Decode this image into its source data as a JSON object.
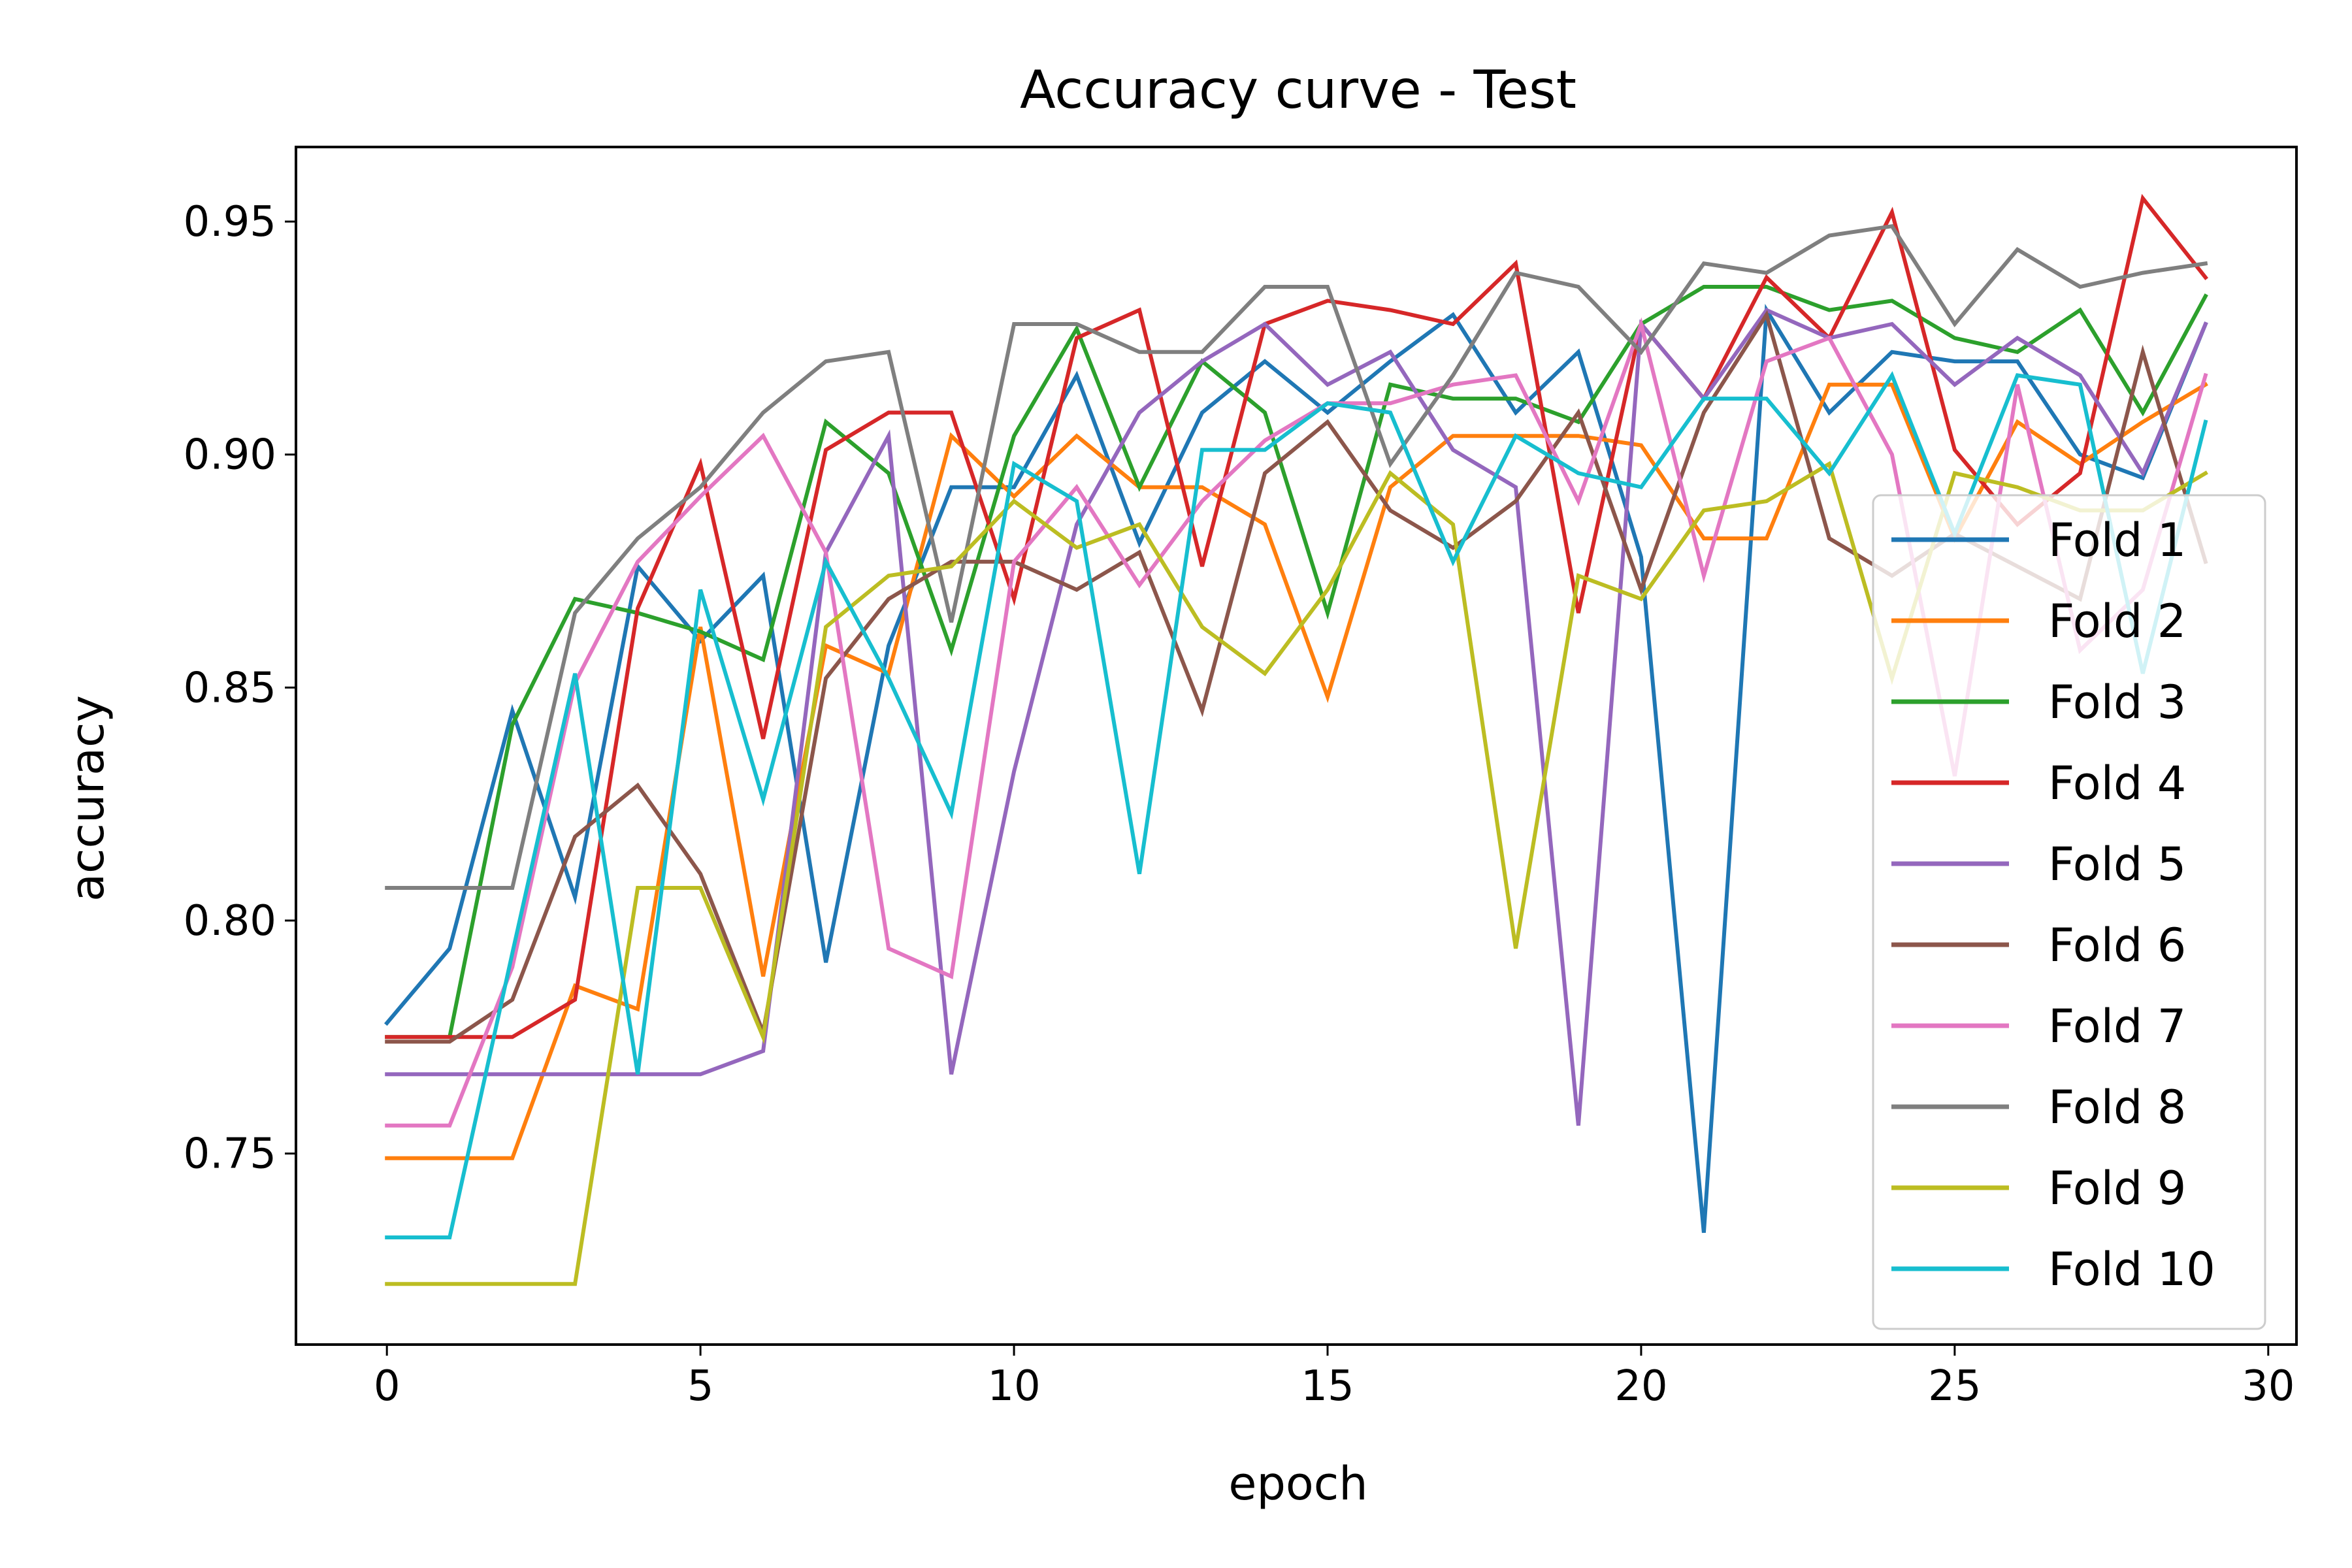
{
  "chart_data": {
    "type": "line",
    "title": "Accuracy curve - Test",
    "xlabel": "epoch",
    "ylabel": "accuracy",
    "xlim": [
      -1.45,
      30.45
    ],
    "ylim": [
      0.709,
      0.966
    ],
    "xticks": [
      0,
      5,
      10,
      15,
      20,
      25,
      30
    ],
    "xtick_labels": [
      "0",
      "5",
      "10",
      "15",
      "20",
      "25",
      "30"
    ],
    "yticks": [
      0.75,
      0.8,
      0.85,
      0.9,
      0.95
    ],
    "ytick_labels": [
      "0.75",
      "0.80",
      "0.85",
      "0.90",
      "0.95"
    ],
    "grid": false,
    "legend_position": "lower-right",
    "x": [
      0,
      1,
      2,
      3,
      4,
      5,
      6,
      7,
      8,
      9,
      10,
      11,
      12,
      13,
      14,
      15,
      16,
      17,
      18,
      19,
      20,
      21,
      22,
      23,
      24,
      25,
      26,
      27,
      28,
      29
    ],
    "series": [
      {
        "name": "Fold 1",
        "color": "#1f77b4",
        "values": [
          0.778,
          0.794,
          0.845,
          0.805,
          0.876,
          0.86,
          0.874,
          0.791,
          0.859,
          0.893,
          0.893,
          0.917,
          0.881,
          0.909,
          0.92,
          0.909,
          0.92,
          0.93,
          0.909,
          0.922,
          0.878,
          0.733,
          0.931,
          0.909,
          0.922,
          0.92,
          0.92,
          0.9,
          0.895,
          0.928
        ]
      },
      {
        "name": "Fold 2",
        "color": "#ff7f0e",
        "values": [
          0.749,
          0.749,
          0.749,
          0.786,
          0.781,
          0.863,
          0.788,
          0.859,
          0.853,
          0.904,
          0.891,
          0.904,
          0.893,
          0.893,
          0.885,
          0.848,
          0.893,
          0.904,
          0.904,
          0.904,
          0.902,
          0.882,
          0.882,
          0.915,
          0.915,
          0.882,
          0.907,
          0.898,
          0.907,
          0.915
        ]
      },
      {
        "name": "Fold 3",
        "color": "#2ca02c",
        "values": [
          0.775,
          0.775,
          0.842,
          0.869,
          0.866,
          0.862,
          0.856,
          0.907,
          0.896,
          0.858,
          0.904,
          0.927,
          0.893,
          0.92,
          0.909,
          0.866,
          0.915,
          0.912,
          0.912,
          0.907,
          0.928,
          0.936,
          0.936,
          0.931,
          0.933,
          0.925,
          0.922,
          0.931,
          0.909,
          0.934
        ]
      },
      {
        "name": "Fold 4",
        "color": "#d62728",
        "values": [
          0.775,
          0.775,
          0.775,
          0.783,
          0.867,
          0.898,
          0.839,
          0.901,
          0.909,
          0.909,
          0.869,
          0.925,
          0.931,
          0.876,
          0.928,
          0.933,
          0.931,
          0.928,
          0.941,
          0.866,
          0.928,
          0.912,
          0.938,
          0.925,
          0.952,
          0.901,
          0.885,
          0.896,
          0.955,
          0.938
        ]
      },
      {
        "name": "Fold 5",
        "color": "#9467bd",
        "values": [
          0.767,
          0.767,
          0.767,
          0.767,
          0.767,
          0.767,
          0.772,
          0.879,
          0.904,
          0.767,
          0.832,
          0.885,
          0.909,
          0.92,
          0.928,
          0.915,
          0.922,
          0.901,
          0.893,
          0.756,
          0.928,
          0.912,
          0.931,
          0.925,
          0.928,
          0.915,
          0.925,
          0.917,
          0.896,
          0.928
        ]
      },
      {
        "name": "Fold 6",
        "color": "#8c564b",
        "values": [
          0.774,
          0.774,
          0.783,
          0.818,
          0.829,
          0.81,
          0.776,
          0.852,
          0.869,
          0.877,
          0.877,
          0.871,
          0.879,
          0.845,
          0.896,
          0.907,
          0.888,
          0.88,
          0.89,
          0.909,
          0.871,
          0.909,
          0.93,
          0.882,
          0.874,
          0.883,
          0.876,
          0.869,
          0.922,
          0.877
        ]
      },
      {
        "name": "Fold 7",
        "color": "#e377c2",
        "values": [
          0.756,
          0.756,
          0.79,
          0.851,
          0.877,
          0.891,
          0.904,
          0.879,
          0.794,
          0.788,
          0.877,
          0.893,
          0.872,
          0.89,
          0.903,
          0.911,
          0.911,
          0.915,
          0.917,
          0.89,
          0.928,
          0.874,
          0.92,
          0.925,
          0.9,
          0.831,
          0.915,
          0.858,
          0.871,
          0.917
        ]
      },
      {
        "name": "Fold 8",
        "color": "#7f7f7f",
        "values": [
          0.807,
          0.807,
          0.807,
          0.866,
          0.882,
          0.893,
          0.909,
          0.92,
          0.922,
          0.864,
          0.928,
          0.928,
          0.922,
          0.922,
          0.936,
          0.936,
          0.898,
          0.917,
          0.939,
          0.936,
          0.922,
          0.941,
          0.939,
          0.947,
          0.949,
          0.928,
          0.944,
          0.936,
          0.939,
          0.941
        ]
      },
      {
        "name": "Fold 9",
        "color": "#bcbd22",
        "values": [
          0.722,
          0.722,
          0.722,
          0.722,
          0.807,
          0.807,
          0.775,
          0.863,
          0.874,
          0.876,
          0.89,
          0.88,
          0.885,
          0.863,
          0.853,
          0.871,
          0.896,
          0.885,
          0.794,
          0.874,
          0.869,
          0.888,
          0.89,
          0.898,
          0.852,
          0.896,
          0.893,
          0.888,
          0.888,
          0.896
        ]
      },
      {
        "name": "Fold 10",
        "color": "#17becf",
        "values": [
          0.732,
          0.732,
          0.793,
          0.853,
          0.767,
          0.871,
          0.826,
          0.877,
          0.852,
          0.823,
          0.898,
          0.89,
          0.81,
          0.901,
          0.901,
          0.911,
          0.909,
          0.877,
          0.904,
          0.896,
          0.893,
          0.912,
          0.912,
          0.896,
          0.917,
          0.883,
          0.917,
          0.915,
          0.853,
          0.907
        ]
      }
    ]
  }
}
